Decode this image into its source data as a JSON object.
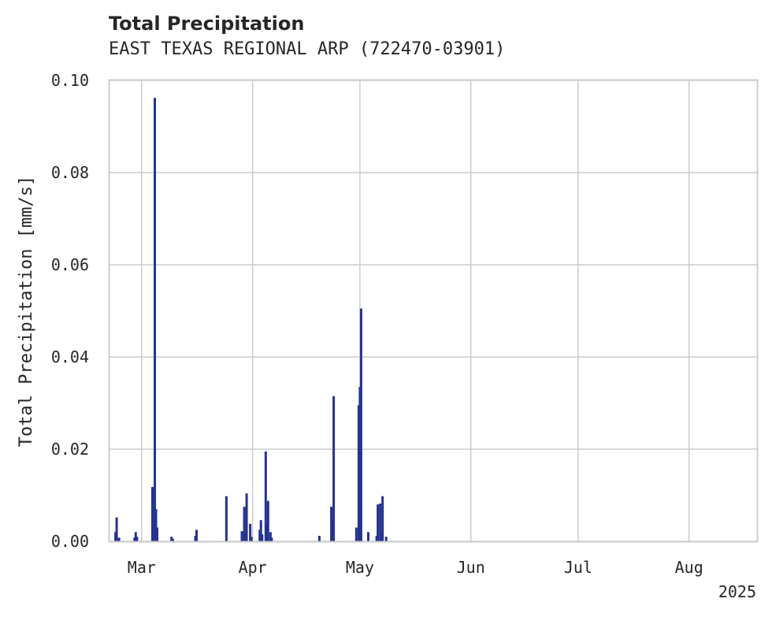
{
  "chart_data": {
    "type": "bar",
    "title": "Total Precipitation",
    "subtitle": "EAST TEXAS REGIONAL ARP (722470-03901)",
    "xlabel": "",
    "ylabel": "Total Precipitation [mm/s]",
    "year_label": "2025",
    "color": "#25338f",
    "grid": true,
    "xlim": [
      "2025-02-20",
      "2025-08-20"
    ],
    "ylim": [
      0,
      0.1
    ],
    "yticks": [
      0.0,
      0.02,
      0.04,
      0.06,
      0.08,
      0.1
    ],
    "ytick_labels": [
      "0.00",
      "0.02",
      "0.04",
      "0.06",
      "0.08",
      "0.10"
    ],
    "xticks": [
      "2025-03-01",
      "2025-04-01",
      "2025-05-01",
      "2025-06-01",
      "2025-07-01",
      "2025-08-01"
    ],
    "xtick_labels": [
      "Mar",
      "Apr",
      "May",
      "Jun",
      "Jul",
      "Aug"
    ],
    "x": [
      "2025-02-22",
      "2025-02-22",
      "2025-02-23",
      "2025-02-23",
      "2025-02-27",
      "2025-02-27",
      "2025-02-28",
      "2025-03-04",
      "2025-03-05",
      "2025-03-05",
      "2025-03-05",
      "2025-03-09",
      "2025-03-10",
      "2025-03-16",
      "2025-03-16",
      "2025-03-25",
      "2025-03-29",
      "2025-03-30",
      "2025-03-30",
      "2025-03-30",
      "2025-03-31",
      "2025-04-01",
      "2025-04-03",
      "2025-04-03",
      "2025-04-04",
      "2025-04-05",
      "2025-04-05",
      "2025-04-05",
      "2025-04-06",
      "2025-04-06",
      "2025-04-20",
      "2025-04-23",
      "2025-04-23",
      "2025-04-24",
      "2025-04-30",
      "2025-05-01",
      "2025-05-01",
      "2025-05-01",
      "2025-05-03",
      "2025-05-06",
      "2025-05-06",
      "2025-05-07",
      "2025-05-07",
      "2025-05-07",
      "2025-05-08"
    ],
    "values": [
      0.002,
      0.0052,
      0.0,
      0.0008,
      0.0008,
      0.002,
      0.001,
      0.0118,
      0.003,
      0.0962,
      0.007,
      0.001,
      0.0006,
      0.0012,
      0.0025,
      0.0098,
      0.0022,
      0.0104,
      0.0075,
      0.002,
      0.0038,
      0.001,
      0.0025,
      0.0046,
      0.0015,
      0.0038,
      0.0088,
      0.0195,
      0.002,
      0.0008,
      0.0012,
      0.0075,
      0.005,
      0.0315,
      0.003,
      0.0505,
      0.0295,
      0.0335,
      0.002,
      0.0012,
      0.008,
      0.0098,
      0.0082,
      0.002,
      0.001
    ]
  }
}
